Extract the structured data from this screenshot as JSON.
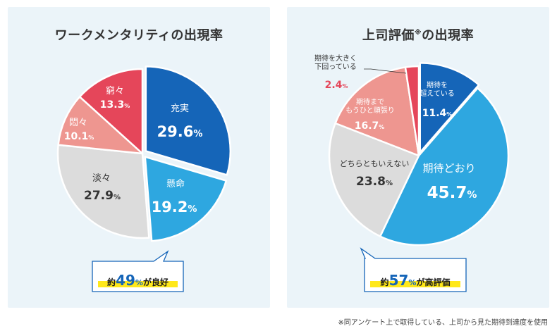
{
  "chart_data": [
    {
      "type": "pie",
      "title": "ワークメンタリティの出現率",
      "slices": [
        {
          "label": "充実",
          "value": 29.6,
          "value_text": "29.6",
          "color": "#1565b8"
        },
        {
          "label": "懸命",
          "value": 19.2,
          "value_text": "19.2",
          "color": "#2ea7e0"
        },
        {
          "label": "淡々",
          "value": 27.9,
          "value_text": "27.9",
          "color": "#dcdcdc"
        },
        {
          "label": "悶々",
          "value": 10.1,
          "value_text": "10.1",
          "color": "#ee9690"
        },
        {
          "label": "窮々",
          "value": 13.3,
          "value_text": "13.3",
          "color": "#e5465a"
        }
      ],
      "percent_sign": "%",
      "callout": {
        "prefix": "約",
        "number": "49",
        "unit": "%",
        "suffix": "が良好"
      }
    },
    {
      "type": "pie",
      "title": "上司評価",
      "title_mark": "※",
      "title_suffix": "の出現率",
      "slices": [
        {
          "label": "期待を\n超えている",
          "value": 11.4,
          "value_text": "11.4",
          "color": "#1565b8"
        },
        {
          "label": "期待どおり",
          "value": 45.7,
          "value_text": "45.7",
          "color": "#2ea7e0"
        },
        {
          "label": "どちらともいえない",
          "value": 23.8,
          "value_text": "23.8",
          "color": "#dcdcdc"
        },
        {
          "label": "期待まで\nもうひと頑張り",
          "value": 16.7,
          "value_text": "16.7",
          "color": "#ee9690"
        },
        {
          "label": "期待を大きく\n下回っている",
          "value": 2.4,
          "value_text": "2.4",
          "color": "#e5465a"
        }
      ],
      "percent_sign": "%",
      "callout": {
        "prefix": "約",
        "number": "57",
        "unit": "%",
        "suffix": "が高評価"
      }
    }
  ],
  "footnote": "※同アンケート上で取得している、上司から見た期待到達度を使用"
}
